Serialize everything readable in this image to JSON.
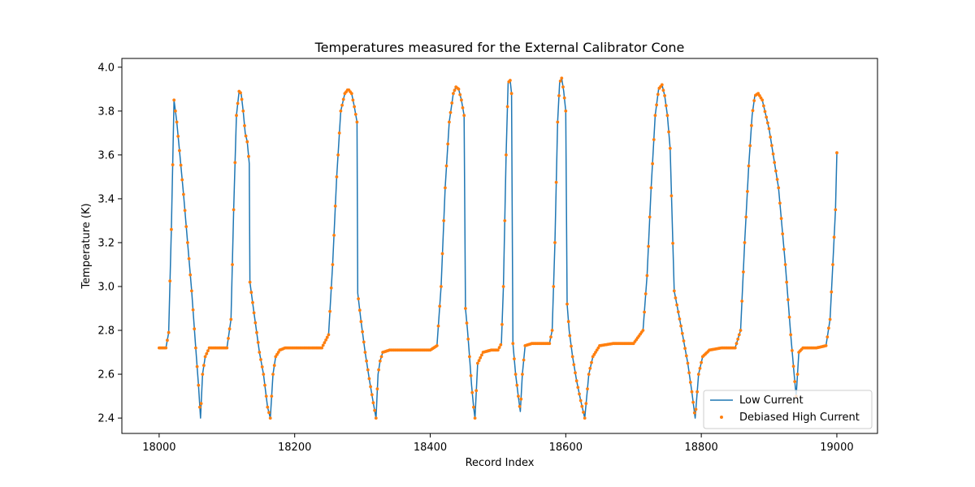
{
  "chart_data": {
    "type": "line",
    "title": "Temperatures measured for the External Calibrator Cone",
    "xlabel": "Record Index",
    "ylabel": "Temperature (K)",
    "xlim": [
      17945,
      19060
    ],
    "ylim": [
      2.33,
      4.04
    ],
    "xticks": [
      18000,
      18200,
      18400,
      18600,
      18800,
      19000
    ],
    "yticks": [
      2.4,
      2.6,
      2.8,
      3.0,
      3.2,
      3.4,
      3.6,
      3.8,
      4.0
    ],
    "ytick_labels": [
      "2.4",
      "2.6",
      "2.8",
      "3.0",
      "3.2",
      "3.4",
      "3.6",
      "3.8",
      "4.0"
    ],
    "grid": false,
    "legend_position": "lower-right",
    "series": [
      {
        "name": "Low Current",
        "style": "line",
        "color": "#1f77b4",
        "x": [
          18000,
          18010,
          18014,
          18018,
          18022,
          18026,
          18030,
          18036,
          18042,
          18048,
          18054,
          18058,
          18061,
          18064,
          18068,
          18074,
          18080,
          18090,
          18100,
          18106,
          18110,
          18114,
          18118,
          18121,
          18124,
          18127,
          18130,
          18133,
          18134,
          18140,
          18148,
          18154,
          18160,
          18164,
          18168,
          18172,
          18178,
          18186,
          18200,
          18220,
          18240,
          18250,
          18256,
          18262,
          18268,
          18274,
          18279,
          18284,
          18288,
          18292,
          18293,
          18298,
          18304,
          18310,
          18316,
          18320,
          18323,
          18326,
          18330,
          18340,
          18360,
          18380,
          18400,
          18410,
          18416,
          18422,
          18428,
          18434,
          18438,
          18442,
          18446,
          18450,
          18452,
          18455,
          18458,
          18461,
          18464,
          18466,
          18470,
          18478,
          18490,
          18500,
          18505,
          18508,
          18512,
          18515,
          18518,
          18520,
          18522,
          18526,
          18530,
          18533,
          18536,
          18540,
          18550,
          18570,
          18576,
          18580,
          18584,
          18588,
          18591,
          18594,
          18597,
          18600,
          18602,
          18605,
          18610,
          18616,
          18622,
          18628,
          18634,
          18640,
          18650,
          18670,
          18700,
          18714,
          18720,
          18726,
          18732,
          18737,
          18742,
          18746,
          18750,
          18754,
          18760,
          18770,
          18780,
          18786,
          18791,
          18796,
          18802,
          18812,
          18830,
          18850,
          18858,
          18864,
          18870,
          18875,
          18879,
          18884,
          18890,
          18900,
          18914,
          18924,
          18932,
          18937,
          18940,
          18944,
          18950,
          18970,
          18984,
          18990,
          18994,
          18998,
          19000
        ],
        "y": [
          2.72,
          2.72,
          2.79,
          3.26,
          3.85,
          3.75,
          3.62,
          3.42,
          3.2,
          2.98,
          2.72,
          2.55,
          2.4,
          2.6,
          2.68,
          2.72,
          2.72,
          2.72,
          2.72,
          2.85,
          3.35,
          3.78,
          3.89,
          3.88,
          3.8,
          3.7,
          3.66,
          3.56,
          3.02,
          2.88,
          2.7,
          2.6,
          2.45,
          2.4,
          2.6,
          2.68,
          2.71,
          2.72,
          2.72,
          2.72,
          2.72,
          2.78,
          3.1,
          3.5,
          3.8,
          3.88,
          3.9,
          3.88,
          3.82,
          3.75,
          2.97,
          2.84,
          2.7,
          2.58,
          2.47,
          2.4,
          2.6,
          2.66,
          2.7,
          2.71,
          2.71,
          2.71,
          2.71,
          2.73,
          3.0,
          3.45,
          3.75,
          3.88,
          3.91,
          3.9,
          3.85,
          3.78,
          2.9,
          2.8,
          2.68,
          2.55,
          2.45,
          2.4,
          2.65,
          2.7,
          2.71,
          2.71,
          2.74,
          3.0,
          3.6,
          3.93,
          3.94,
          3.88,
          2.74,
          2.6,
          2.5,
          2.43,
          2.6,
          2.73,
          2.74,
          2.74,
          2.74,
          2.8,
          3.2,
          3.75,
          3.93,
          3.95,
          3.89,
          3.8,
          2.92,
          2.8,
          2.68,
          2.57,
          2.48,
          2.4,
          2.6,
          2.68,
          2.73,
          2.74,
          2.74,
          2.8,
          3.05,
          3.45,
          3.78,
          3.9,
          3.92,
          3.87,
          3.78,
          3.63,
          2.98,
          2.82,
          2.65,
          2.52,
          2.4,
          2.6,
          2.68,
          2.71,
          2.72,
          2.72,
          2.8,
          3.2,
          3.55,
          3.78,
          3.87,
          3.88,
          3.85,
          3.72,
          3.45,
          3.1,
          2.78,
          2.6,
          2.5,
          2.7,
          2.72,
          2.72,
          2.73,
          2.85,
          3.1,
          3.35,
          3.61
        ]
      },
      {
        "name": "Debiased High Current",
        "style": "markers",
        "color": "#ff7f0e"
      }
    ]
  }
}
